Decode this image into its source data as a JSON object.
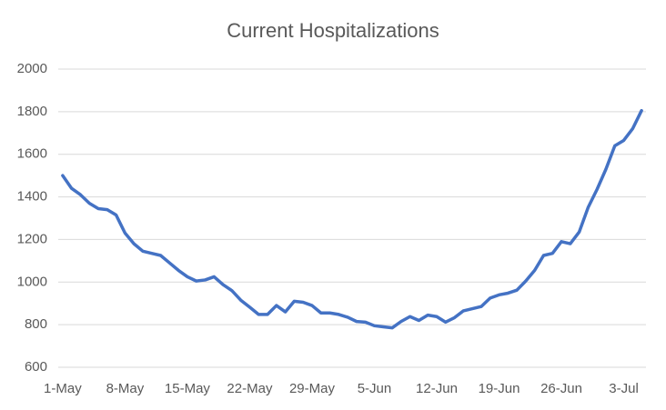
{
  "chart_data": {
    "type": "line",
    "title": "Current Hospitalizations",
    "categories": [
      "1-May",
      null,
      null,
      null,
      null,
      null,
      null,
      "8-May",
      null,
      null,
      null,
      null,
      null,
      null,
      "15-May",
      null,
      null,
      null,
      null,
      null,
      null,
      "22-May",
      null,
      null,
      null,
      null,
      null,
      null,
      "29-May",
      null,
      null,
      null,
      null,
      null,
      null,
      "5-Jun",
      null,
      null,
      null,
      null,
      null,
      null,
      "12-Jun",
      null,
      null,
      null,
      null,
      null,
      null,
      "19-Jun",
      null,
      null,
      null,
      null,
      null,
      null,
      "26-Jun",
      null,
      null,
      null,
      null,
      null,
      null,
      "3-Jul",
      null,
      null
    ],
    "series": [
      {
        "color": "#4472c4",
        "values": [
          1500,
          1440,
          1410,
          1370,
          1345,
          1340,
          1315,
          1230,
          1180,
          1145,
          1135,
          1125,
          1090,
          1055,
          1025,
          1005,
          1010,
          1025,
          988,
          960,
          915,
          882,
          848,
          848,
          890,
          860,
          910,
          905,
          890,
          855,
          855,
          848,
          835,
          815,
          812,
          795,
          790,
          785,
          815,
          838,
          820,
          845,
          838,
          812,
          833,
          865,
          875,
          885,
          925,
          940,
          948,
          962,
          1005,
          1055,
          1125,
          1135,
          1190,
          1180,
          1235,
          1350,
          1435,
          1530,
          1640,
          1665,
          1720,
          1805
        ]
      }
    ],
    "ylim": [
      600,
      2000
    ],
    "yticks": [
      600,
      800,
      1000,
      1200,
      1400,
      1600,
      1800,
      2000
    ],
    "grid": true
  }
}
